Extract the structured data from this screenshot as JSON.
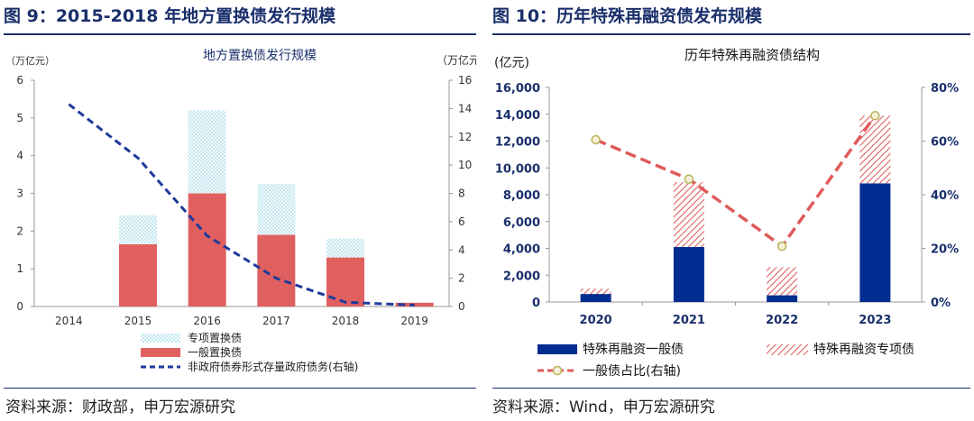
{
  "left_panel": {
    "figure_title": "图 9：2015-2018 年地方置换债发行规模",
    "source": "资料来源：财政部，申万宏源研究"
  },
  "right_panel": {
    "figure_title": "图 10：历年特殊再融资债发布规模",
    "source": "资料来源：Wind，申万宏源研究"
  },
  "colors": {
    "navy": "#1a2f6b",
    "red_bar": "#e06060",
    "dotted_cyan": "#8fd0e0",
    "dark_blue_bar": "#002d8f",
    "hatch_red": "#e06060",
    "dashed_red": "#e05a5a",
    "marker_olive": "#b9b45a",
    "left_dash_line": "#1f3a9a"
  },
  "chart_data": [
    {
      "type": "bar",
      "title": "地方置换债发行规模",
      "ylabel_left": "（万亿元）",
      "ylabel_right": "（万亿元）",
      "categories": [
        "2014",
        "2015",
        "2016",
        "2017",
        "2018",
        "2019"
      ],
      "ylim_left": [
        0,
        6
      ],
      "ylim_right": [
        0,
        16
      ],
      "yticks_left": [
        "0",
        "1",
        "2",
        "3",
        "4",
        "5",
        "6"
      ],
      "yticks_right": [
        "0",
        "2",
        "4",
        "6",
        "8",
        "10",
        "12",
        "14",
        "16"
      ],
      "stacked": true,
      "legend_position": "bottom",
      "series": [
        {
          "name": "一般置换债",
          "values": [
            0,
            1.65,
            3.0,
            1.9,
            1.3,
            0.1
          ],
          "style": "solid",
          "axis": "left"
        },
        {
          "name": "专项置换债",
          "values": [
            0,
            0.77,
            2.2,
            1.35,
            0.5,
            0
          ],
          "style": "dotted",
          "axis": "left"
        },
        {
          "name": "非政府债券形式存量政府债务(右轴)",
          "values": [
            14.3,
            10.5,
            5.0,
            2.0,
            0.3,
            0.1
          ],
          "style": "dashed-line",
          "axis": "right"
        }
      ]
    },
    {
      "type": "bar",
      "title": "历年特殊再融资债结构",
      "ylabel_left": "(亿元)",
      "categories": [
        "2020",
        "2021",
        "2022",
        "2023"
      ],
      "ylim_left": [
        0,
        16000
      ],
      "ylim_right": [
        0,
        80
      ],
      "yticks_left": [
        "0",
        "2,000",
        "4,000",
        "6,000",
        "8,000",
        "10,000",
        "12,000",
        "14,000",
        "16,000"
      ],
      "yticks_right": [
        "0%",
        "20%",
        "40%",
        "60%",
        "80%"
      ],
      "stacked": true,
      "legend_position": "bottom",
      "series": [
        {
          "name": "特殊再融资一般债",
          "values": [
            600,
            4100,
            500,
            8850
          ],
          "style": "solid",
          "axis": "left"
        },
        {
          "name": "特殊再融资专项债",
          "values": [
            400,
            4850,
            2100,
            5050
          ],
          "style": "hatched",
          "axis": "left"
        },
        {
          "name": "一般债占比(右轴)",
          "values": [
            60.5,
            45.8,
            20.8,
            69.5
          ],
          "style": "dashed-line-markers",
          "axis": "right"
        }
      ]
    }
  ]
}
